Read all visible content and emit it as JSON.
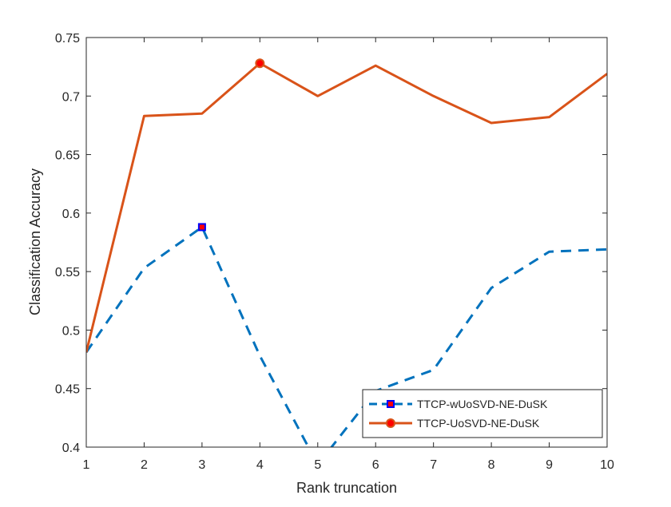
{
  "chart_data": {
    "type": "line",
    "title": "",
    "xlabel": "Rank truncation",
    "ylabel": "Classification Accuracy",
    "xlim": [
      1,
      10
    ],
    "ylim": [
      0.4,
      0.75
    ],
    "grid": false,
    "legend_position": "bottom-right",
    "x_ticks": [
      "1",
      "2",
      "3",
      "4",
      "5",
      "6",
      "7",
      "8",
      "9",
      "10"
    ],
    "y_ticks": [
      "0.4",
      "0.45",
      "0.5",
      "0.55",
      "0.6",
      "0.65",
      "0.7",
      "0.75"
    ],
    "x": [
      1,
      2,
      3,
      4,
      5,
      6,
      7,
      8,
      9,
      10
    ],
    "series": [
      {
        "name": "TTCP-wUoSVD-NE-DuSK",
        "color": "#0072BD",
        "line_style": "dashed",
        "marker": "square",
        "marker_face": "#FF0000",
        "marker_edge": "#0000FF",
        "highlight_index": 2,
        "values": [
          0.481,
          0.553,
          0.588,
          0.478,
          0.385,
          0.448,
          0.466,
          0.536,
          0.567,
          0.569
        ]
      },
      {
        "name": "TTCP-UoSVD-NE-DuSK",
        "color": "#D95319",
        "line_style": "solid",
        "marker": "circle",
        "marker_face": "#FF0000",
        "marker_edge": "#D95319",
        "highlight_index": 3,
        "values": [
          0.481,
          0.683,
          0.685,
          0.728,
          0.7,
          0.726,
          0.7,
          0.677,
          0.682,
          0.719
        ]
      }
    ]
  }
}
